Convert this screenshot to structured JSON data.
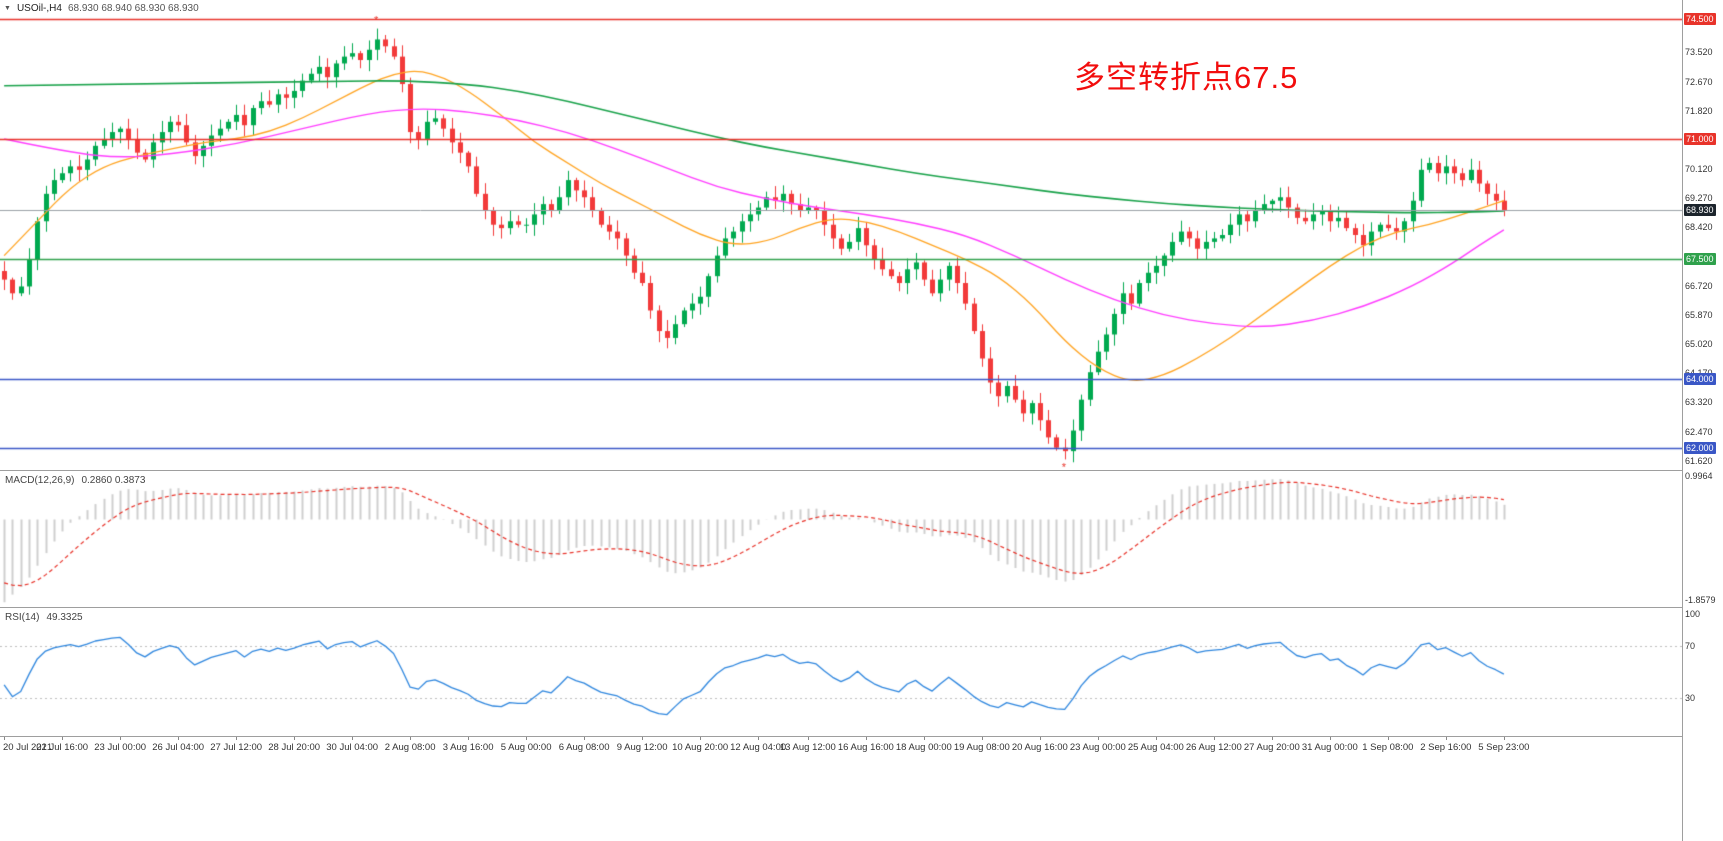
{
  "header": {
    "dropdown_icon": "▼",
    "title": "USOil-,H4",
    "ohlc": "68.930 68.940 68.930 68.930"
  },
  "theme": {
    "background": "#ffffff",
    "up_color": "#00A94F",
    "down_color": "#F23A3A",
    "ma_fast_color": "#FFA320",
    "ma_mid_color": "#FF3DFF",
    "ma_slow_color": "#19A24A",
    "level_red": "#E8332A",
    "level_green": "#2FA14C",
    "level_blue": "#3A57C6",
    "price_marker_bg": "#1C242C",
    "price_line_gray": "#9AA0A6",
    "macd_hist_color": "#CFCFCF",
    "macd_signal_color": "#E8332A",
    "rsi_line_color": "#2E86DE",
    "axis_text_color": "#333333",
    "divider_color": "#9E9E9E"
  },
  "chart_data": {
    "type": "candlestick",
    "title": "USOil-,H4",
    "symbol": "USOil-",
    "timeframe": "H4",
    "ylim": [
      61.35,
      75.05
    ],
    "closes": [
      66.9,
      66.5,
      66.7,
      67.5,
      68.6,
      69.4,
      69.8,
      70.0,
      70.2,
      70.1,
      70.4,
      70.8,
      71.0,
      71.2,
      71.3,
      71.0,
      70.6,
      70.4,
      70.9,
      71.2,
      71.5,
      71.4,
      70.9,
      70.5,
      70.8,
      71.1,
      71.3,
      71.5,
      71.7,
      71.4,
      71.9,
      72.1,
      72.0,
      72.3,
      72.2,
      72.4,
      72.7,
      72.9,
      73.1,
      72.8,
      73.2,
      73.4,
      73.5,
      73.3,
      73.6,
      73.9,
      73.7,
      73.4,
      72.6,
      71.2,
      71.0,
      71.5,
      71.6,
      71.3,
      70.9,
      70.6,
      70.2,
      69.4,
      68.9,
      68.5,
      68.4,
      68.6,
      68.5,
      68.5,
      68.8,
      69.1,
      68.9,
      69.3,
      69.8,
      69.5,
      69.3,
      68.9,
      68.5,
      68.3,
      68.1,
      67.6,
      67.1,
      66.8,
      66.0,
      65.4,
      65.2,
      65.6,
      66.0,
      66.2,
      66.4,
      67.0,
      67.6,
      68.1,
      68.3,
      68.6,
      68.8,
      69.0,
      69.3,
      69.2,
      69.4,
      69.1,
      68.9,
      69.0,
      68.9,
      68.5,
      68.1,
      67.8,
      68.0,
      68.4,
      67.9,
      67.5,
      67.2,
      67.0,
      66.8,
      67.2,
      67.4,
      66.9,
      66.5,
      66.9,
      67.3,
      66.8,
      66.2,
      65.4,
      64.6,
      63.9,
      63.5,
      63.8,
      63.4,
      63.0,
      63.3,
      62.8,
      62.3,
      62.0,
      61.9,
      62.5,
      63.4,
      64.2,
      64.8,
      65.3,
      65.9,
      66.5,
      66.2,
      66.8,
      67.1,
      67.3,
      67.6,
      68.0,
      68.3,
      68.1,
      67.8,
      68.0,
      68.1,
      68.2,
      68.5,
      68.8,
      68.6,
      68.9,
      69.1,
      69.2,
      69.3,
      69.0,
      68.7,
      68.6,
      68.8,
      68.9,
      68.6,
      68.7,
      68.4,
      68.2,
      67.9,
      68.3,
      68.5,
      68.4,
      68.3,
      68.6,
      69.2,
      70.1,
      70.3,
      70.0,
      70.2,
      70.0,
      69.8,
      70.1,
      69.7,
      69.4,
      69.2,
      68.93
    ],
    "moving_averages": [
      {
        "name": "ma-fast",
        "color_key": "ma_fast_color",
        "width": 1.3,
        "points": [
          [
            0,
            67.6
          ],
          [
            4,
            68.6
          ],
          [
            8,
            69.6
          ],
          [
            12,
            70.2
          ],
          [
            16,
            70.5
          ],
          [
            20,
            70.7
          ],
          [
            24,
            70.9
          ],
          [
            28,
            71.0
          ],
          [
            32,
            71.2
          ],
          [
            36,
            71.6
          ],
          [
            40,
            72.1
          ],
          [
            44,
            72.6
          ],
          [
            47,
            72.9
          ],
          [
            50,
            73.0
          ],
          [
            53,
            72.8
          ],
          [
            56,
            72.4
          ],
          [
            60,
            71.7
          ],
          [
            64,
            70.9
          ],
          [
            68,
            70.3
          ],
          [
            72,
            69.7
          ],
          [
            76,
            69.2
          ],
          [
            80,
            68.7
          ],
          [
            84,
            68.2
          ],
          [
            88,
            67.9
          ],
          [
            92,
            68.0
          ],
          [
            96,
            68.4
          ],
          [
            100,
            68.7
          ],
          [
            104,
            68.6
          ],
          [
            108,
            68.3
          ],
          [
            112,
            67.9
          ],
          [
            116,
            67.5
          ],
          [
            120,
            67.0
          ],
          [
            124,
            66.2
          ],
          [
            128,
            65.1
          ],
          [
            132,
            64.3
          ],
          [
            136,
            63.9
          ],
          [
            140,
            64.1
          ],
          [
            144,
            64.6
          ],
          [
            148,
            65.2
          ],
          [
            152,
            65.9
          ],
          [
            156,
            66.6
          ],
          [
            160,
            67.3
          ],
          [
            164,
            67.9
          ],
          [
            168,
            68.3
          ],
          [
            172,
            68.5
          ],
          [
            176,
            68.8
          ],
          [
            181,
            69.2
          ]
        ]
      },
      {
        "name": "ma-mid",
        "color_key": "ma_mid_color",
        "width": 1.4,
        "points": [
          [
            0,
            71.0
          ],
          [
            8,
            70.6
          ],
          [
            14,
            70.45
          ],
          [
            20,
            70.55
          ],
          [
            28,
            70.85
          ],
          [
            36,
            71.3
          ],
          [
            44,
            71.75
          ],
          [
            50,
            71.9
          ],
          [
            56,
            71.8
          ],
          [
            62,
            71.55
          ],
          [
            68,
            71.2
          ],
          [
            74,
            70.7
          ],
          [
            80,
            70.15
          ],
          [
            86,
            69.6
          ],
          [
            92,
            69.25
          ],
          [
            98,
            69.0
          ],
          [
            104,
            68.8
          ],
          [
            110,
            68.55
          ],
          [
            116,
            68.2
          ],
          [
            122,
            67.6
          ],
          [
            128,
            66.9
          ],
          [
            134,
            66.3
          ],
          [
            140,
            65.85
          ],
          [
            146,
            65.6
          ],
          [
            152,
            65.5
          ],
          [
            158,
            65.7
          ],
          [
            164,
            66.1
          ],
          [
            170,
            66.7
          ],
          [
            175,
            67.4
          ],
          [
            178,
            67.9
          ],
          [
            181,
            68.35
          ]
        ]
      },
      {
        "name": "ma-slow",
        "color_key": "ma_slow_color",
        "width": 1.6,
        "points": [
          [
            0,
            72.55
          ],
          [
            20,
            72.62
          ],
          [
            40,
            72.68
          ],
          [
            48,
            72.7
          ],
          [
            56,
            72.6
          ],
          [
            62,
            72.4
          ],
          [
            68,
            72.1
          ],
          [
            74,
            71.75
          ],
          [
            80,
            71.4
          ],
          [
            86,
            71.05
          ],
          [
            92,
            70.75
          ],
          [
            98,
            70.5
          ],
          [
            104,
            70.25
          ],
          [
            110,
            70.0
          ],
          [
            116,
            69.8
          ],
          [
            122,
            69.6
          ],
          [
            128,
            69.4
          ],
          [
            134,
            69.25
          ],
          [
            140,
            69.12
          ],
          [
            146,
            69.02
          ],
          [
            152,
            68.95
          ],
          [
            158,
            68.9
          ],
          [
            164,
            68.87
          ],
          [
            170,
            68.85
          ],
          [
            176,
            68.86
          ],
          [
            181,
            68.9
          ]
        ]
      }
    ],
    "levels": [
      {
        "price": 74.5,
        "label": "74.500",
        "color_key": "level_red"
      },
      {
        "price": 71.0,
        "label": "71.000",
        "color_key": "level_red"
      },
      {
        "price": 67.5,
        "label": "67.500",
        "color_key": "level_green"
      },
      {
        "price": 64.0,
        "label": "64.000",
        "color_key": "level_blue"
      },
      {
        "price": 62.0,
        "label": "62.000",
        "color_key": "level_blue"
      }
    ],
    "price_marker": {
      "price": 68.93,
      "label": "68.930"
    },
    "y_ticks": [
      {
        "price": 73.52,
        "label": "73.520"
      },
      {
        "price": 72.67,
        "label": "72.670"
      },
      {
        "price": 71.82,
        "label": "71.820"
      },
      {
        "price": 70.12,
        "label": "70.120"
      },
      {
        "price": 69.27,
        "label": "69.270"
      },
      {
        "price": 68.42,
        "label": "68.420"
      },
      {
        "price": 66.72,
        "label": "66.720"
      },
      {
        "price": 65.87,
        "label": "65.870"
      },
      {
        "price": 65.02,
        "label": "65.020"
      },
      {
        "price": 64.17,
        "label": "64.170"
      },
      {
        "price": 63.32,
        "label": "63.320"
      },
      {
        "price": 62.47,
        "label": "62.470"
      },
      {
        "price": 61.62,
        "label": "61.620"
      }
    ],
    "time_labels": [
      "20 Jul 2021",
      "21 Jul 16:00",
      "23 Jul 00:00",
      "26 Jul 04:00",
      "27 Jul 12:00",
      "28 Jul 20:00",
      "30 Jul 04:00",
      "2 Aug 08:00",
      "3 Aug 16:00",
      "5 Aug 00:00",
      "6 Aug 08:00",
      "9 Aug 12:00",
      "10 Aug 20:00",
      "12 Aug 04:00",
      "13 Aug 12:00",
      "16 Aug 16:00",
      "18 Aug 00:00",
      "19 Aug 08:00",
      "20 Aug 16:00",
      "23 Aug 00:00",
      "25 Aug 04:00",
      "26 Aug 12:00",
      "27 Aug 20:00",
      "31 Aug 00:00",
      "1 Sep 08:00",
      "2 Sep 16:00",
      "5 Sep 23:00"
    ],
    "macd": {
      "name": "MACD(12,26,9)",
      "values": "0.2860 0.3873",
      "max_label": "0.9964",
      "min_label": "-1.8579",
      "range": [
        -2.02,
        1.12
      ]
    },
    "rsi": {
      "name": "RSI(14)",
      "value": "49.3325",
      "levels": [
        70,
        30
      ],
      "axis_labels": [
        {
          "label": "100",
          "value": 100
        },
        {
          "label": "70",
          "value": 70
        },
        {
          "label": "30",
          "value": 30
        }
      ]
    },
    "annotation": {
      "text": "多空转折点67.5",
      "color": "#F20D0D"
    },
    "marks": [
      {
        "bar": 45,
        "price": 74.25,
        "dir": "high"
      },
      {
        "bar": 128,
        "price": 61.6,
        "dir": "low"
      }
    ]
  }
}
